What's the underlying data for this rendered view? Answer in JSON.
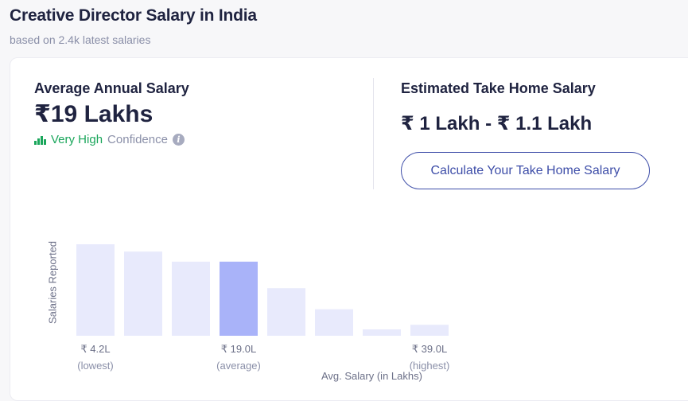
{
  "page": {
    "title": "Creative Director Salary in India",
    "subtitle": "based on 2.4k latest salaries"
  },
  "average": {
    "label": "Average Annual Salary",
    "value": "₹19 Lakhs",
    "confidence_level": "Very High",
    "confidence_word": "Confidence",
    "confidence_icon": "signal-bars-icon",
    "info_icon": "info-icon"
  },
  "take_home": {
    "label": "Estimated Take Home Salary",
    "value": "₹ 1 Lakh - ₹ 1.1 Lakh",
    "button_label": "Calculate Your Take Home Salary"
  },
  "colors": {
    "accent": "#3d4da8",
    "confidence_green": "#1aa65b",
    "bar": "#e8eafc",
    "bar_highlight": "#a9b3f9"
  },
  "chart_data": {
    "type": "bar",
    "ylabel": "Salaries Reported",
    "xlabel": "Avg. Salary (in Lakhs)",
    "values": [
      100,
      92,
      81,
      81,
      52,
      29,
      7,
      12
    ],
    "highlight_index": 3,
    "tick_labels": [
      {
        "index": 0,
        "value": "₹ 4.2L",
        "note": "(lowest)"
      },
      {
        "index": 3,
        "value": "₹ 19.0L",
        "note": "(average)"
      },
      {
        "index": 7,
        "value": "₹ 39.0L",
        "note": "(highest)"
      }
    ],
    "grid": false
  }
}
